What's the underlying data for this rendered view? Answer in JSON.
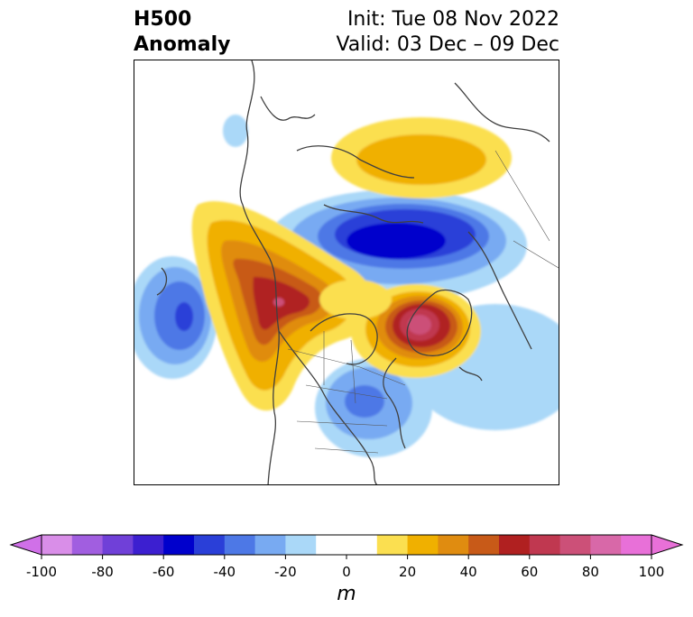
{
  "title": {
    "left_line1": "H500",
    "left_line2": "Anomaly",
    "right_line1": "Init: Tue 08 Nov 2022",
    "right_line2": "Valid: 03 Dec – 09 Dec"
  },
  "colorbar": {
    "unit_label": "m",
    "ticks": [
      "-100",
      "-80",
      "-60",
      "-40",
      "-20",
      "0",
      "20",
      "40",
      "60",
      "80",
      "100"
    ],
    "colors": [
      "#d98ee8",
      "#a15ee0",
      "#7040d8",
      "#3c1fd0",
      "#0000cc",
      "#2a3fd8",
      "#4d78e6",
      "#78aaf2",
      "#aad8f8",
      "#ffffff",
      "#ffffff",
      "#fbdf50",
      "#f0b000",
      "#e08c10",
      "#c85a18",
      "#b02020",
      "#c03850",
      "#cc5078",
      "#d868a8",
      "#e870d8"
    ],
    "under_color": "#d070e8",
    "over_color": "#e870d8"
  },
  "map": {
    "projection": "polar-stereographic",
    "region": "Northern Hemisphere, North America / Arctic",
    "anomaly_features": [
      {
        "name": "Arctic ridge",
        "sign": "positive",
        "peak_m": 30
      },
      {
        "name": "Northern Canada trough",
        "sign": "negative",
        "peak_m": -60
      },
      {
        "name": "Alaska / NE Pacific ridge",
        "sign": "positive",
        "peak_m": 70
      },
      {
        "name": "Greenland ridge",
        "sign": "positive",
        "peak_m": 80
      },
      {
        "name": "North Pacific trough",
        "sign": "negative",
        "peak_m": -50
      },
      {
        "name": "Eastern US trough",
        "sign": "negative",
        "peak_m": -30
      },
      {
        "name": "North Atlantic trough",
        "sign": "negative",
        "peak_m": -20
      }
    ]
  }
}
